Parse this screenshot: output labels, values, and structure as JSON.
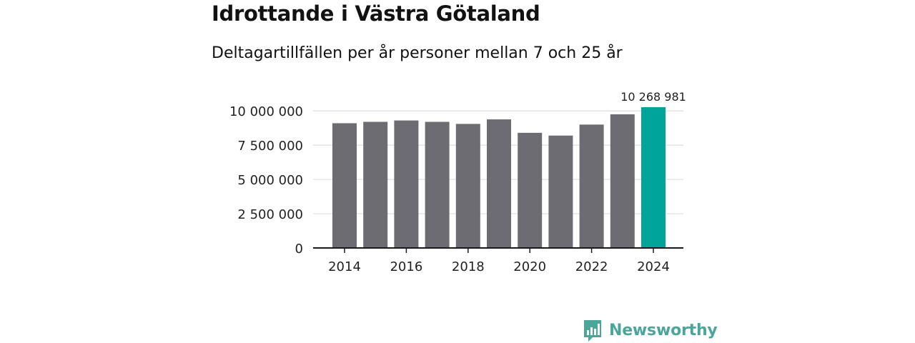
{
  "header": {
    "title": "Idrottande i Västra Götaland",
    "subtitle": "Deltagartillfällen per år personer mellan 7 och 25 år"
  },
  "chart_data": {
    "type": "bar",
    "title": "Idrottande i Västra Götaland",
    "subtitle": "Deltagartillfällen per år personer mellan 7 och 25 år",
    "xlabel": "",
    "ylabel": "",
    "categories": [
      "2014",
      "2015",
      "2016",
      "2017",
      "2018",
      "2019",
      "2020",
      "2021",
      "2022",
      "2023",
      "2024"
    ],
    "values": [
      9100000,
      9200000,
      9300000,
      9200000,
      9050000,
      9380000,
      8400000,
      8200000,
      9000000,
      9750000,
      10268981
    ],
    "ylim": [
      0,
      10268981
    ],
    "yticks": [
      0,
      2500000,
      5000000,
      7500000,
      10000000
    ],
    "ytick_labels": [
      "0",
      "2 500 000",
      "5 000 000",
      "7 500 000",
      "10 000 000"
    ],
    "xtick_labels": [
      "2014",
      "2016",
      "2018",
      "2020",
      "2022",
      "2024"
    ],
    "grid": true,
    "highlight_index": 10,
    "annotation": {
      "index": 10,
      "text": "10 268 981"
    },
    "colors": {
      "bar": "#6d6c72",
      "highlight": "#00a499",
      "grid": "#dcdcdc",
      "axis": "#1a1a1a",
      "text": "#222222"
    }
  },
  "brand": {
    "name": "Newsworthy",
    "logo_icon": "bar-chart-speech-bubble-icon",
    "color": "#4aa69a"
  }
}
